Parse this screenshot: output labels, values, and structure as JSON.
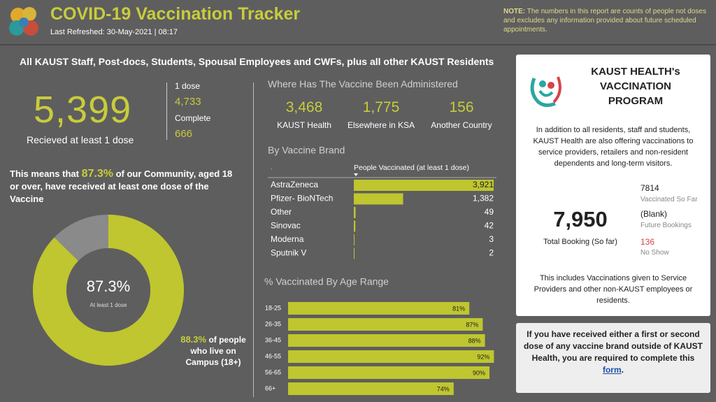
{
  "header": {
    "title": "COVID-19 Vaccination Tracker",
    "refreshed": "Last Refreshed:  30-May-2021 | 08:17",
    "note_label": "NOTE:",
    "note": "The numbers in this report are counts of people not doses and excludes any information provided about future scheduled appointments."
  },
  "left": {
    "heading": "All KAUST Staff, Post-docs, Students, Spousal Employees and CWFs, plus all other KAUST Residents",
    "total": "5,399",
    "total_label": "Recieved at least 1 dose",
    "dose1_label": "1 dose",
    "dose1": "4,733",
    "complete_label": "Complete",
    "complete": "666",
    "means_prefix": "This means that",
    "means_pct": "87.3%",
    "means_suffix": "of our Community, aged 18 or over, have received at least one dose of the Vaccine",
    "campus_pct": "88.3%",
    "campus_text": "of people who live on Campus (18+)"
  },
  "admin": {
    "title": "Where Has The Vaccine Been Administered",
    "items": [
      {
        "value": "3,468",
        "label": "KAUST Health"
      },
      {
        "value": "1,775",
        "label": "Elsewhere in KSA"
      },
      {
        "value": "156",
        "label": "Another Country"
      }
    ]
  },
  "program": {
    "title": "KAUST HEALTH's VACCINATION PROGRAM",
    "intro": "In addition to all residents, staff and students, KAUST Health are also offering vaccinations to service providers, retailers and non-resident dependents and long-term visitors.",
    "total": "7,950",
    "total_label": "Total Booking (So far)",
    "stats": [
      {
        "value": "7814",
        "label": "Vaccinated So Far"
      },
      {
        "value": "(Blank)",
        "label": "Future Bookings"
      },
      {
        "value": "136",
        "label": "No Show"
      }
    ],
    "footer": "This includes Vaccinations given to Service Providers and other non-KAUST employees or residents."
  },
  "form_box": {
    "text": "If you have received either a first or second dose of any vaccine brand outside of KAUST Health, you are required to complete this",
    "link": "form",
    "end": "."
  },
  "chart_data": [
    {
      "type": "pie",
      "values": [
        87.3,
        12.7
      ],
      "colors": [
        "#bfc62f",
        "#8a8a8a"
      ],
      "center_label": "87.3%",
      "center_sublabel": "At least 1 dose"
    },
    {
      "type": "hbar",
      "title": "By Vaccine Brand",
      "corner_label": ".",
      "column_header": "People Vaccinated (at least 1 dose)",
      "categories": [
        "AstraZeneca",
        "Pfizer- BioNTech",
        "Other",
        "Sinovac",
        "Moderna",
        "Sputnik V"
      ],
      "values": [
        3921,
        1382,
        49,
        42,
        3,
        2
      ],
      "value_labels": [
        "3,921",
        "1,382",
        "49",
        "42",
        "3",
        "2"
      ],
      "color": "#bfc62f"
    },
    {
      "type": "hbar",
      "title": "% Vaccinated By Age Range",
      "categories": [
        "18-25",
        "26-35",
        "36-45",
        "46-55",
        "56-65",
        "66+"
      ],
      "values": [
        81,
        87,
        88,
        92,
        90,
        74
      ],
      "value_labels": [
        "81%",
        "87%",
        "88%",
        "92%",
        "90%",
        "74%"
      ],
      "xlim": [
        0,
        100
      ],
      "color": "#bfc62f"
    }
  ]
}
